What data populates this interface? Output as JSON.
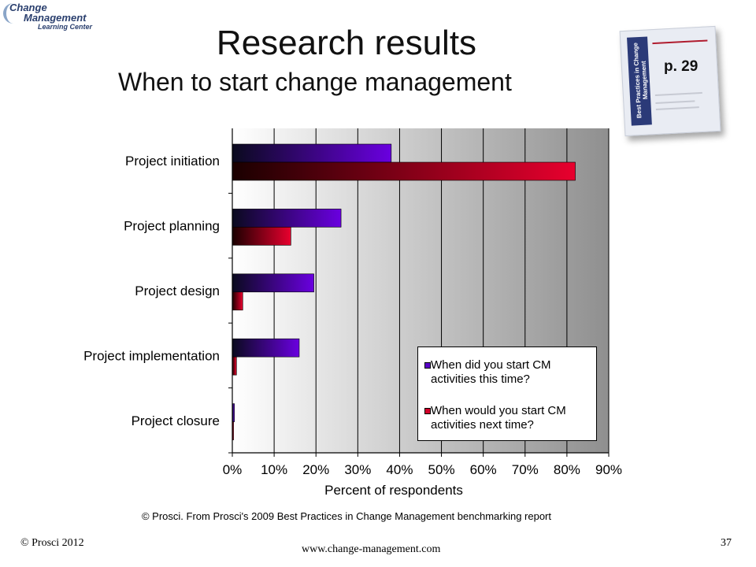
{
  "logo": {
    "line1": "Change",
    "line2": "Management",
    "line3": "Learning Center"
  },
  "slide": {
    "title": "Research results",
    "subtitle": "When to start change management",
    "page_ref": "p. 29",
    "book_spine": "Best Practices in Change Management",
    "source": "© Prosci. From Prosci's 2009 Best Practices in Change Management benchmarking report",
    "footer_left": "© Prosci 2012",
    "footer_center": "www.change-management.com",
    "footer_right": "37"
  },
  "chart_data": {
    "type": "bar",
    "orientation": "horizontal",
    "categories": [
      "Project initiation",
      "Project planning",
      "Project design",
      "Project implementation",
      "Project closure"
    ],
    "series": [
      {
        "name": "When did you start CM activities this time?",
        "values": [
          38,
          26,
          19.5,
          16,
          0.5
        ],
        "color": "#5a00c8"
      },
      {
        "name": "When would you start CM activities next time?",
        "values": [
          82,
          14,
          2.5,
          1,
          0.3
        ],
        "color": "#d3002a"
      }
    ],
    "xlabel": "Percent of respondents",
    "xlim": [
      0,
      90
    ],
    "xticks": [
      "0%",
      "10%",
      "20%",
      "30%",
      "40%",
      "50%",
      "60%",
      "70%",
      "80%",
      "90%"
    ],
    "grid": true,
    "legend_position": "bottom-right"
  },
  "colors": {
    "grid_dark": "#8f8f8f",
    "grid_light": "#ffffff"
  }
}
